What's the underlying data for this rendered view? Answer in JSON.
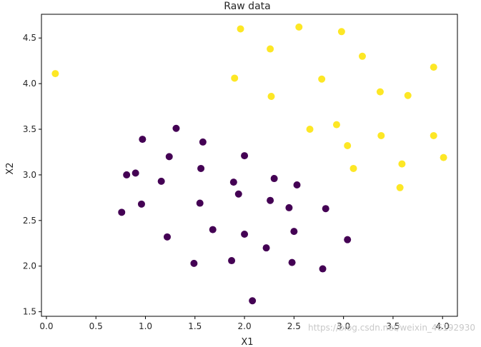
{
  "chart_data": {
    "type": "scatter",
    "title": "Raw data",
    "xlabel": "X1",
    "ylabel": "X2",
    "xlim": [
      -0.05,
      4.15
    ],
    "ylim": [
      1.45,
      4.76
    ],
    "xticks": [
      0.0,
      0.5,
      1.0,
      1.5,
      2.0,
      2.5,
      3.0,
      3.5,
      4.0
    ],
    "xtick_labels": [
      "0.0",
      "0.5",
      "1.0",
      "1.5",
      "2.0",
      "2.5",
      "3.0",
      "3.5",
      "4.0"
    ],
    "yticks": [
      1.5,
      2.0,
      2.5,
      3.0,
      3.5,
      4.0,
      4.5
    ],
    "ytick_labels": [
      "1.5",
      "2.0",
      "2.5",
      "3.0",
      "3.5",
      "4.0",
      "4.5"
    ],
    "grid": false,
    "series": [
      {
        "color": "#440154",
        "points": [
          [
            0.76,
            2.59
          ],
          [
            0.81,
            3.0
          ],
          [
            0.9,
            3.02
          ],
          [
            0.96,
            2.68
          ],
          [
            0.97,
            3.39
          ],
          [
            1.16,
            2.93
          ],
          [
            1.22,
            2.32
          ],
          [
            1.24,
            3.2
          ],
          [
            1.31,
            3.51
          ],
          [
            1.49,
            2.03
          ],
          [
            1.55,
            2.69
          ],
          [
            1.56,
            3.07
          ],
          [
            1.58,
            3.36
          ],
          [
            1.68,
            2.4
          ],
          [
            1.87,
            2.06
          ],
          [
            1.89,
            2.92
          ],
          [
            1.94,
            2.79
          ],
          [
            2.0,
            3.21
          ],
          [
            2.0,
            2.35
          ],
          [
            2.08,
            1.62
          ],
          [
            2.22,
            2.2
          ],
          [
            2.26,
            2.72
          ],
          [
            2.3,
            2.96
          ],
          [
            2.45,
            2.64
          ],
          [
            2.48,
            2.04
          ],
          [
            2.5,
            2.38
          ],
          [
            2.53,
            2.89
          ],
          [
            2.79,
            1.97
          ],
          [
            2.82,
            2.63
          ],
          [
            3.04,
            2.29
          ]
        ]
      },
      {
        "color": "#fde725",
        "points": [
          [
            0.09,
            4.11
          ],
          [
            1.9,
            4.06
          ],
          [
            1.96,
            4.6
          ],
          [
            2.26,
            4.38
          ],
          [
            2.27,
            3.86
          ],
          [
            2.55,
            4.62
          ],
          [
            2.66,
            3.5
          ],
          [
            2.78,
            4.05
          ],
          [
            2.93,
            3.55
          ],
          [
            2.98,
            4.57
          ],
          [
            3.04,
            3.32
          ],
          [
            3.1,
            3.07
          ],
          [
            3.19,
            4.3
          ],
          [
            3.37,
            3.91
          ],
          [
            3.38,
            3.43
          ],
          [
            3.57,
            2.86
          ],
          [
            3.59,
            3.12
          ],
          [
            3.65,
            3.87
          ],
          [
            3.91,
            3.43
          ],
          [
            3.91,
            4.18
          ],
          [
            4.01,
            3.19
          ]
        ]
      }
    ]
  },
  "watermark": "https://blog.csdn.net/weixin_46192930"
}
